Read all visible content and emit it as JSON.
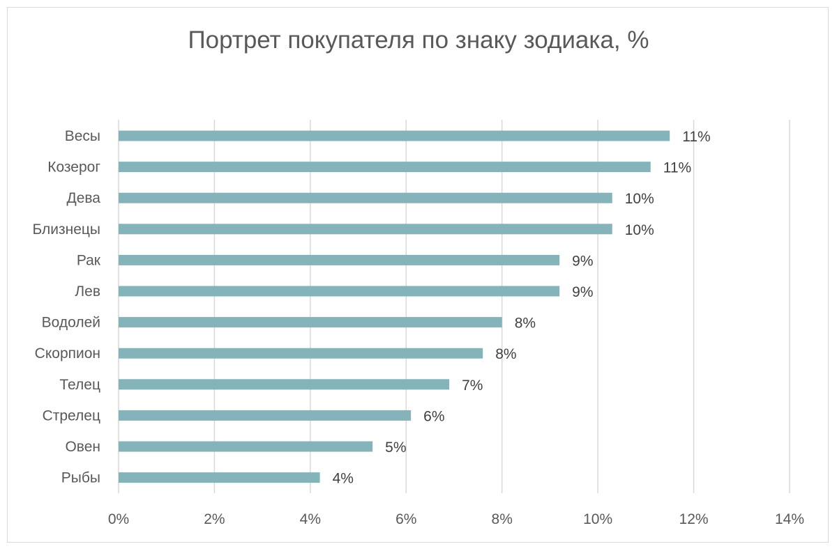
{
  "chart_data": {
    "type": "bar",
    "orientation": "horizontal",
    "title": "Портрет покупателя по знаку зодиака, %",
    "xlabel": "",
    "ylabel": "",
    "categories": [
      "Весы",
      "Козерог",
      "Дева",
      "Близнецы",
      "Рак",
      "Лев",
      "Водолей",
      "Скорпион",
      "Телец",
      "Стрелец",
      "Овен",
      "Рыбы"
    ],
    "values": [
      11.5,
      11.1,
      10.3,
      10.3,
      9.2,
      9.2,
      8.0,
      7.6,
      6.9,
      6.1,
      5.3,
      4.2
    ],
    "data_labels": [
      "11%",
      "11%",
      "10%",
      "10%",
      "9%",
      "9%",
      "8%",
      "8%",
      "7%",
      "6%",
      "5%",
      "4%"
    ],
    "xlim": [
      0,
      14
    ],
    "xticks": [
      0,
      2,
      4,
      6,
      8,
      10,
      12,
      14
    ],
    "xtick_labels": [
      "0%",
      "2%",
      "4%",
      "6%",
      "8%",
      "10%",
      "12%",
      "14%"
    ],
    "grid": true,
    "legend": "none",
    "bar_color": "#84b4b9",
    "grid_color": "#d9d9d9"
  }
}
